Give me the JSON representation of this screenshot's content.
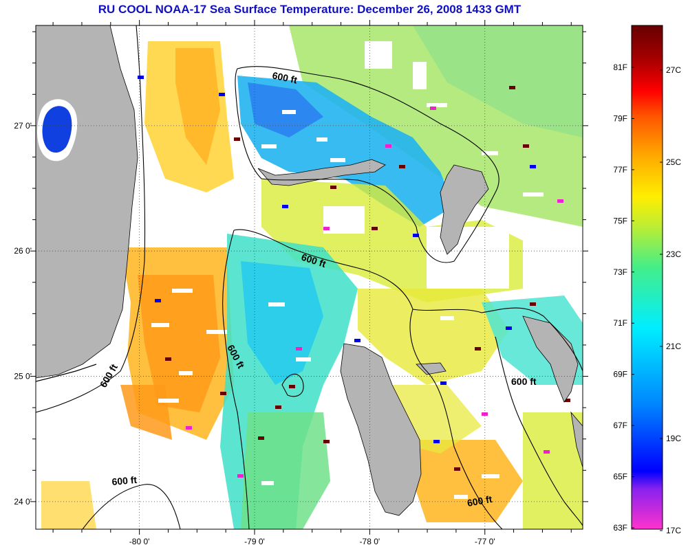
{
  "title": "RU COOL  NOAA-17  Sea Surface Temperature:  December 26, 2008 1433 GMT",
  "map": {
    "lon_range": [
      -80.9,
      -76.15
    ],
    "lat_range": [
      23.78,
      27.8
    ],
    "lon_ticks": [
      {
        "value": -80,
        "label": "-80 0'"
      },
      {
        "value": -79,
        "label": "-79 0'"
      },
      {
        "value": -78,
        "label": "-78 0'"
      },
      {
        "value": -77,
        "label": "-77 0'"
      }
    ],
    "lat_ticks": [
      {
        "value": 27,
        "label": "27 0'"
      },
      {
        "value": 26,
        "label": "26 0'"
      },
      {
        "value": 25,
        "label": "25 0'"
      },
      {
        "value": 24,
        "label": "24 0'"
      }
    ],
    "grid": true,
    "land_color": "#b4b4b4",
    "cloud_mask_color": "#ffffff",
    "contour_depth_labels": [
      "600 ft",
      "600 ft",
      "600 ft",
      "600 ft",
      "600 ft",
      "600 ft",
      "600 ft"
    ]
  },
  "colorbar": {
    "fahrenheit_labels": [
      "81F",
      "79F",
      "77F",
      "75F",
      "73F",
      "71F",
      "69F",
      "67F",
      "65F",
      "63F"
    ],
    "celsius_labels": [
      "27C",
      "25C",
      "23C",
      "21C",
      "19C",
      "17C"
    ],
    "color_stops": [
      "#ff33cc",
      "#8822ee",
      "#0000ff",
      "#0088ff",
      "#00eeff",
      "#44ee88",
      "#bbee33",
      "#ffee00",
      "#ffaa00",
      "#ff5500",
      "#ff0000",
      "#aa0000",
      "#660000"
    ]
  }
}
